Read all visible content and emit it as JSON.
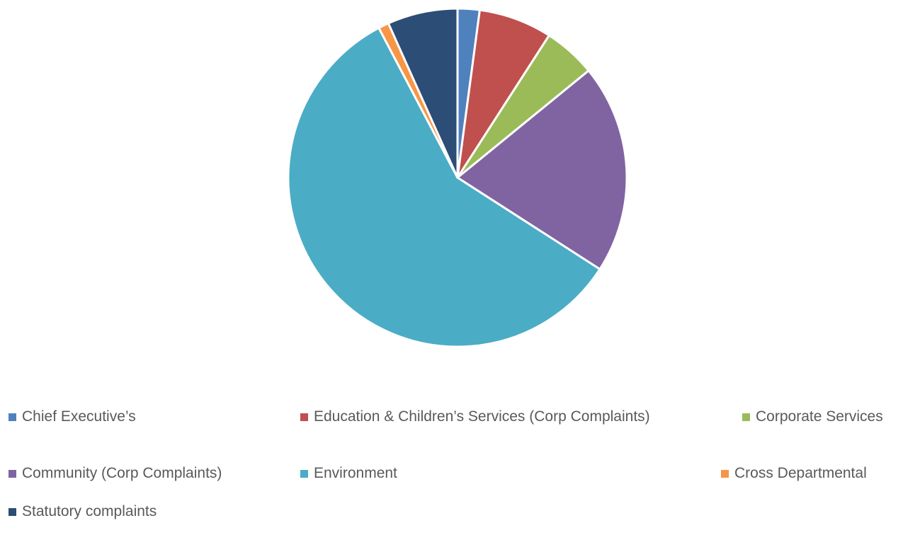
{
  "chart_data": {
    "type": "pie",
    "start_angle_deg": 0,
    "direction": "clockwise",
    "slice_border_color": "#ffffff",
    "legend_position": "bottom",
    "series": [
      {
        "categories": [
          "Chief Executive’s",
          "Education & Children’s Services (Corp Complaints)",
          "Corporate Services",
          "Community (Corp Complaints)",
          "Environment",
          "Cross Departmental",
          "Statutory complaints"
        ],
        "values": [
          2.1,
          7.0,
          5.0,
          20.0,
          58.2,
          1.0,
          6.7
        ],
        "colors": [
          "#4F81BD",
          "#C0504D",
          "#9BBB59",
          "#8064A2",
          "#4BACC6",
          "#F79646",
          "#2C4D75"
        ]
      }
    ]
  }
}
